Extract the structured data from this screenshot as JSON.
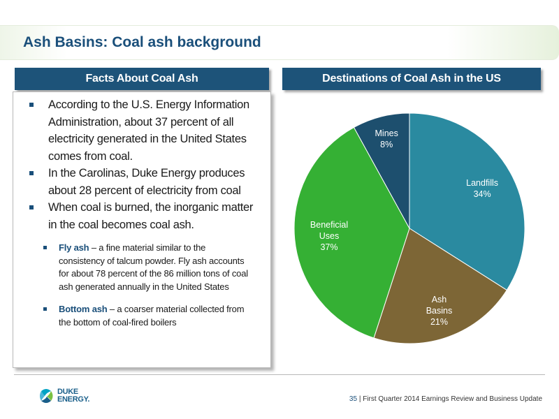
{
  "header": {
    "title": "Ash Basins: Coal ash background"
  },
  "left_panel": {
    "heading": "Facts About Coal Ash",
    "bullets": [
      "According to the U.S. Energy Information Administration, about 37 percent of all electricity generated in the United States comes from coal.",
      "In the Carolinas, Duke Energy produces about 28 percent of electricity from coal",
      "When coal is burned, the inorganic matter in the coal becomes coal ash."
    ],
    "sub_bullets": [
      {
        "term": "Fly ash",
        "text": " – a fine material similar to the consistency of talcum powder. Fly ash accounts for about 78 percent of the 86 million tons of coal ash generated annually in the United States"
      },
      {
        "term": "Bottom ash",
        "text": " – a coarser material collected from the bottom of coal-fired boilers"
      }
    ]
  },
  "right_panel": {
    "heading": "Destinations of Coal Ash in the US"
  },
  "chart_data": {
    "type": "pie",
    "title": "Destinations of Coal Ash in the US",
    "slices": [
      {
        "label": "Landfills",
        "value": 34,
        "display": "34%",
        "color": "#2a8aa0"
      },
      {
        "label": "Ash Basins",
        "value": 21,
        "display": "21%",
        "color": "#7d6636"
      },
      {
        "label": "Beneficial Uses",
        "value": 37,
        "display": "37%",
        "color": "#35b034"
      },
      {
        "label": "Mines",
        "value": 8,
        "display": "8%",
        "color": "#1d4f6e"
      }
    ]
  },
  "footer": {
    "logo": {
      "line1": "DUKE",
      "line2": "ENERGY."
    },
    "page_number": "35",
    "separator": " | ",
    "caption": "First Quarter 2014 Earnings Review and Business Update"
  }
}
